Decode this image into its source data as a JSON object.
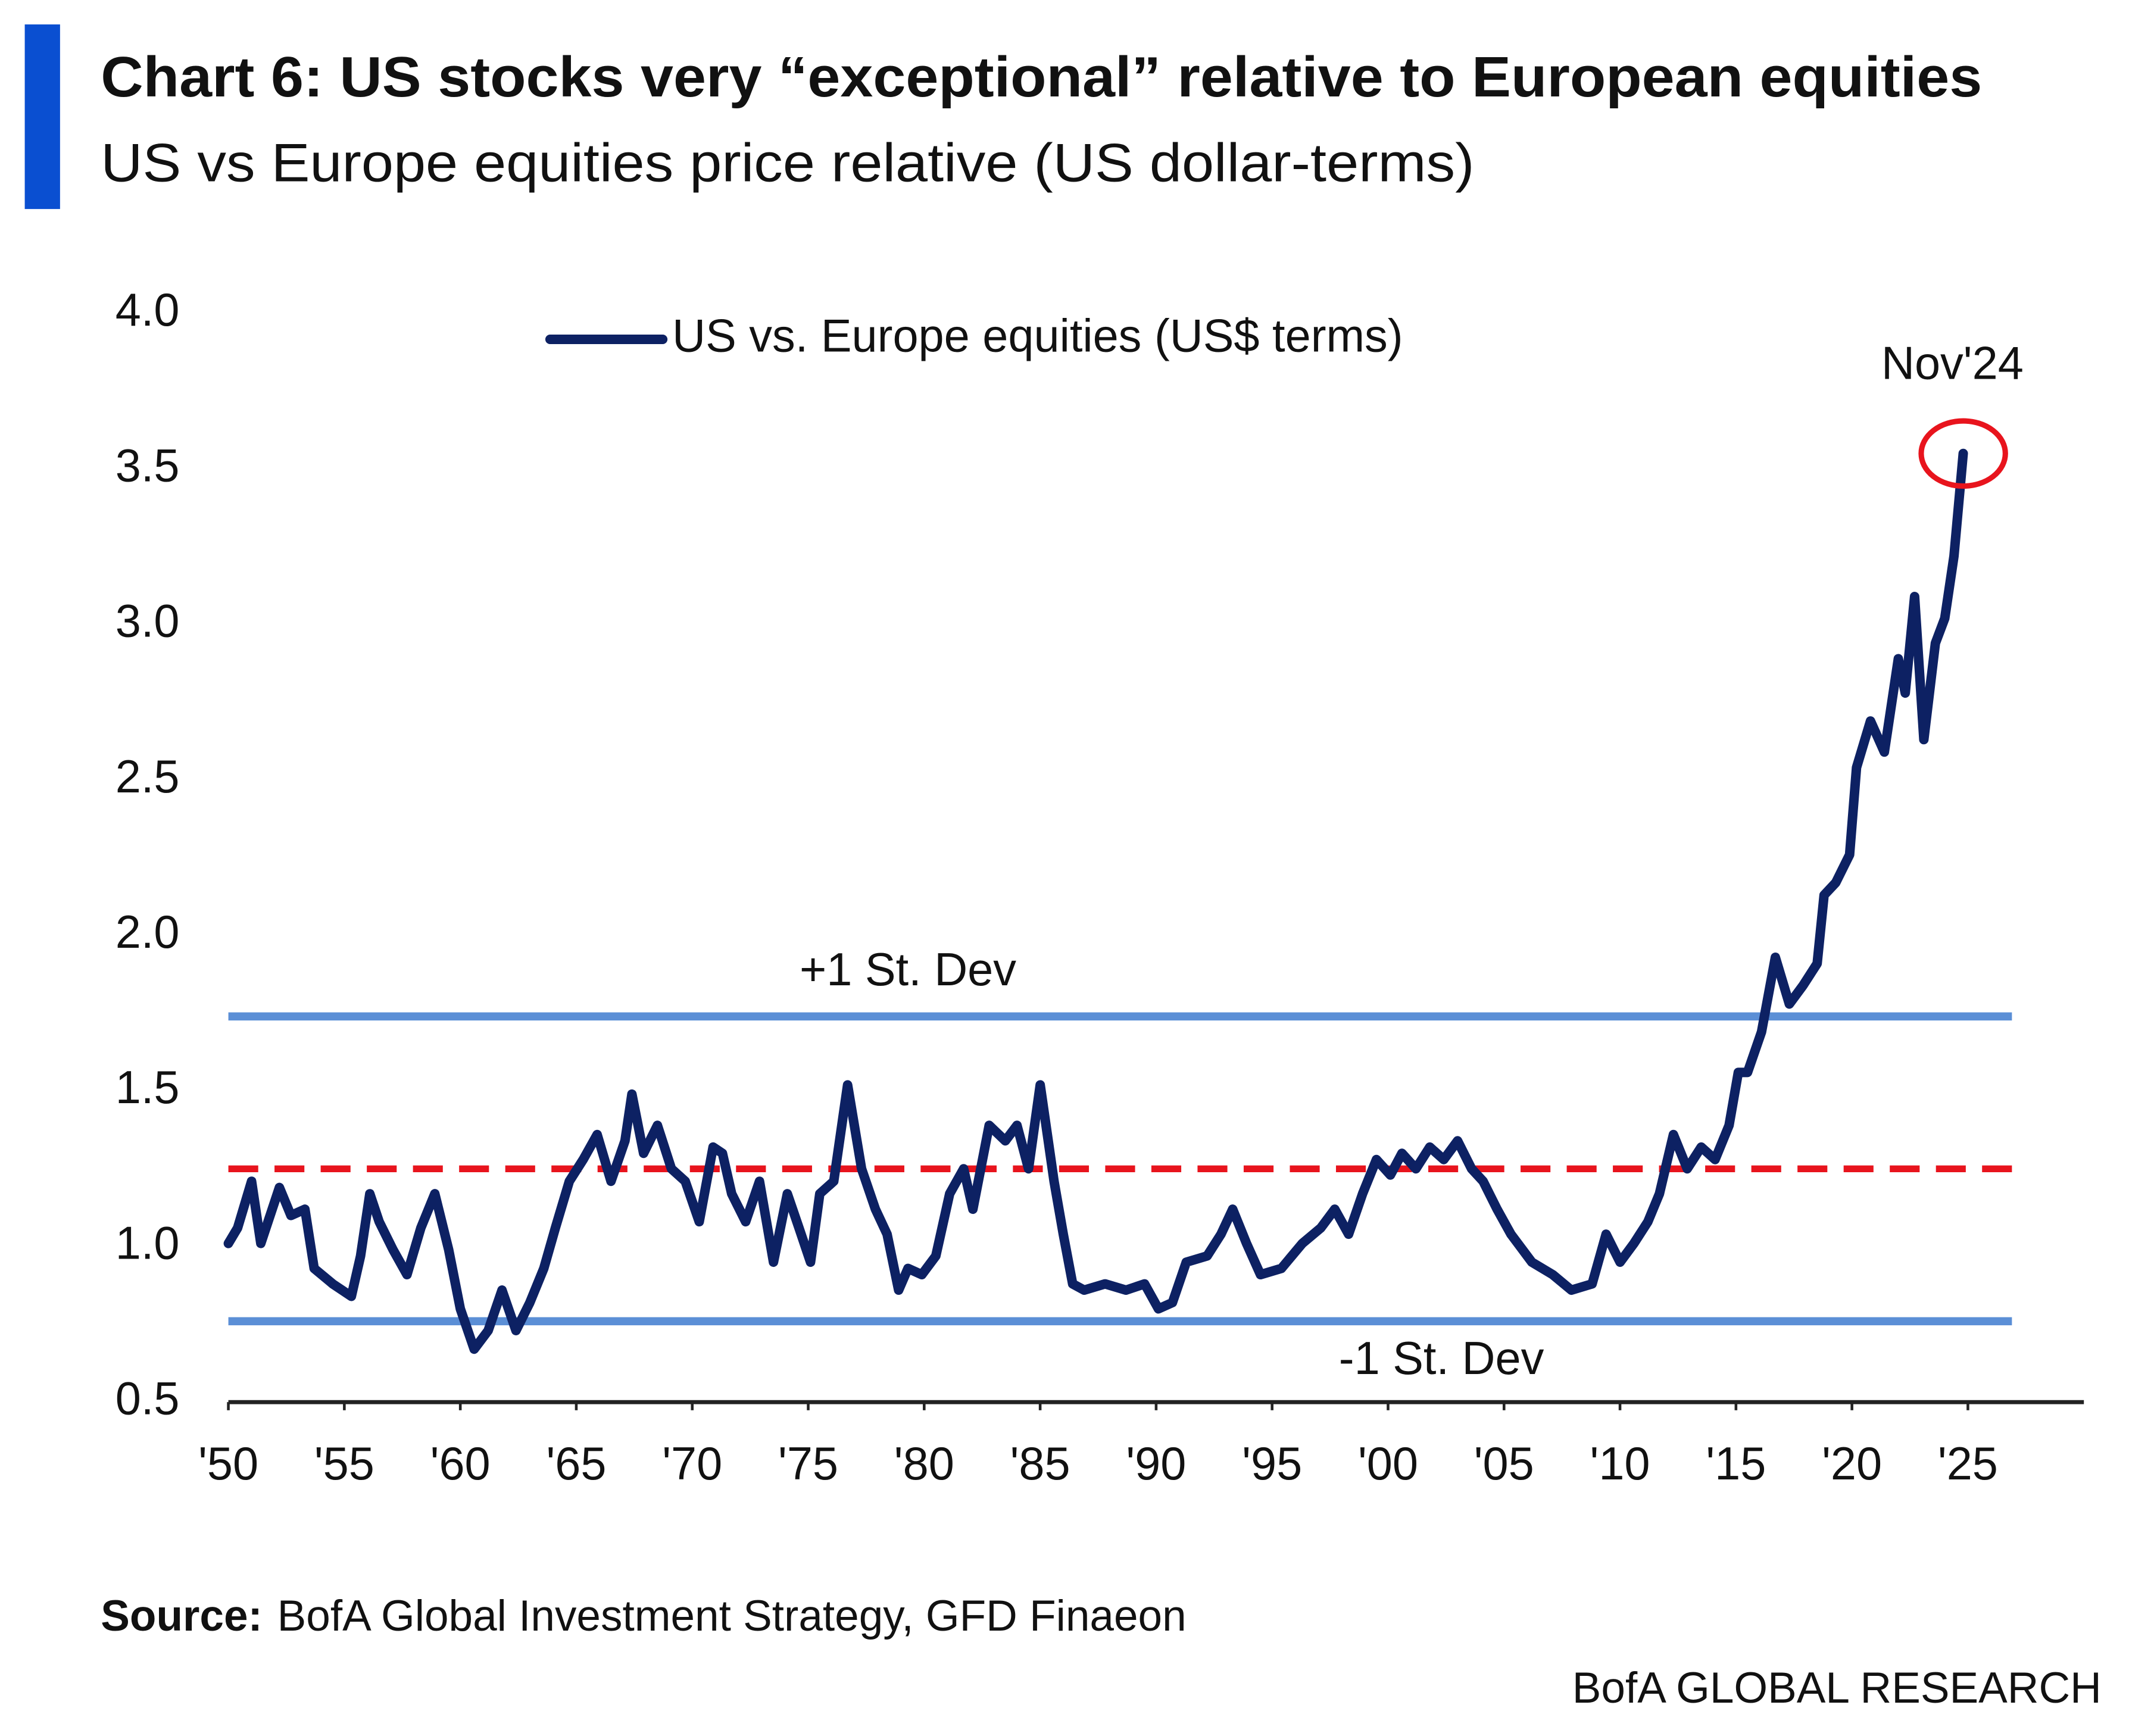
{
  "chart_data": {
    "type": "line",
    "title": "Chart 6: US stocks very “exceptional” relative to European equities",
    "subtitle": "US vs Europe equities price relative (US dollar-terms)",
    "x": [
      1950.0,
      1950.4,
      1951.0,
      1951.4,
      1952.2,
      1952.7,
      1953.3,
      1953.7,
      1954.5,
      1955.3,
      1955.7,
      1956.1,
      1956.5,
      1957.1,
      1957.7,
      1958.3,
      1958.9,
      1959.5,
      1960.0,
      1960.6,
      1961.2,
      1961.8,
      1962.4,
      1963.0,
      1963.6,
      1964.1,
      1964.7,
      1965.3,
      1965.9,
      1966.5,
      1967.1,
      1967.4,
      1967.9,
      1968.5,
      1969.1,
      1969.7,
      1970.3,
      1970.9,
      1971.3,
      1971.7,
      1972.3,
      1972.9,
      1973.5,
      1974.1,
      1974.6,
      1975.1,
      1975.5,
      1976.1,
      1976.7,
      1977.3,
      1977.9,
      1978.4,
      1978.9,
      1979.3,
      1979.9,
      1980.5,
      1981.1,
      1981.7,
      1982.1,
      1982.8,
      1983.5,
      1984.0,
      1984.5,
      1985.0,
      1985.6,
      1986.0,
      1986.4,
      1986.9,
      1987.8,
      1988.7,
      1989.5,
      1990.1,
      1990.7,
      1991.3,
      1992.2,
      1992.8,
      1993.3,
      1993.9,
      1994.5,
      1995.4,
      1996.3,
      1997.1,
      1997.7,
      1998.3,
      1998.9,
      1999.5,
      2000.1,
      2000.6,
      2001.2,
      2001.8,
      2002.4,
      2003.0,
      2003.6,
      2004.1,
      2004.7,
      2005.3,
      2006.2,
      2007.1,
      2007.9,
      2008.8,
      2009.4,
      2010.0,
      2010.6,
      2011.2,
      2011.7,
      2012.3,
      2012.9,
      2013.5,
      2014.1,
      2014.7,
      2015.1,
      2015.5,
      2016.1,
      2016.7,
      2017.3,
      2017.9,
      2018.5,
      2018.8,
      2019.3,
      2019.9,
      2020.2,
      2020.8,
      2021.4,
      2022.0,
      2022.3,
      2022.7,
      2023.1,
      2023.6,
      2024.0,
      2024.4,
      2024.8
    ],
    "series": [
      {
        "name": "US vs. Europe equities (US$ terms)",
        "color": "#0d2163",
        "values": [
          1.01,
          1.06,
          1.21,
          1.01,
          1.19,
          1.1,
          1.12,
          0.93,
          0.88,
          0.84,
          0.97,
          1.17,
          1.08,
          0.99,
          0.91,
          1.06,
          1.17,
          0.99,
          0.8,
          0.67,
          0.73,
          0.86,
          0.73,
          0.82,
          0.93,
          1.06,
          1.21,
          1.28,
          1.36,
          1.21,
          1.34,
          1.49,
          1.3,
          1.39,
          1.25,
          1.21,
          1.08,
          1.32,
          1.3,
          1.17,
          1.08,
          1.21,
          0.95,
          1.17,
          1.06,
          0.95,
          1.17,
          1.21,
          1.52,
          1.25,
          1.12,
          1.04,
          0.86,
          0.93,
          0.91,
          0.97,
          1.17,
          1.25,
          1.12,
          1.39,
          1.34,
          1.39,
          1.25,
          1.52,
          1.21,
          1.04,
          0.88,
          0.86,
          0.88,
          0.86,
          0.88,
          0.8,
          0.82,
          0.95,
          0.97,
          1.04,
          1.12,
          1.01,
          0.91,
          0.93,
          1.01,
          1.06,
          1.12,
          1.04,
          1.17,
          1.28,
          1.23,
          1.3,
          1.25,
          1.32,
          1.28,
          1.34,
          1.25,
          1.21,
          1.12,
          1.04,
          0.95,
          0.91,
          0.86,
          0.88,
          1.04,
          0.95,
          1.01,
          1.08,
          1.17,
          1.36,
          1.25,
          1.32,
          1.28,
          1.39,
          1.56,
          1.56,
          1.69,
          1.93,
          1.78,
          1.84,
          1.91,
          2.13,
          2.17,
          2.26,
          2.54,
          2.69,
          2.59,
          2.89,
          2.78,
          3.09,
          2.63,
          2.94,
          3.02,
          3.22,
          3.55
        ]
      }
    ],
    "xlim": [
      1950,
      2030
    ],
    "xticks": [
      {
        "value": 1950,
        "label": "'50"
      },
      {
        "value": 1955,
        "label": "'55"
      },
      {
        "value": 1960,
        "label": "'60"
      },
      {
        "value": 1965,
        "label": "'65"
      },
      {
        "value": 1970,
        "label": "'70"
      },
      {
        "value": 1975,
        "label": "'75"
      },
      {
        "value": 1980,
        "label": "'80"
      },
      {
        "value": 1985,
        "label": "'85"
      },
      {
        "value": 1990,
        "label": "'90"
      },
      {
        "value": 1995,
        "label": "'95"
      },
      {
        "value": 2000,
        "label": "'00"
      },
      {
        "value": 2005,
        "label": "'05"
      },
      {
        "value": 2010,
        "label": "'10"
      },
      {
        "value": 2015,
        "label": "'15"
      },
      {
        "value": 2020,
        "label": "'20"
      },
      {
        "value": 2025,
        "label": "'25"
      }
    ],
    "ylim": [
      0.5,
      4.0
    ],
    "yticks": [
      {
        "value": 4,
        "label": "4.0"
      },
      3.5,
      {
        "value": 3,
        "label": "3.0"
      },
      2.5,
      {
        "value": 2,
        "label": "2.0"
      },
      1.5,
      {
        "value": 1,
        "label": "1.0"
      },
      0.5
    ],
    "grid": false,
    "legend": "top",
    "reference_lines": [
      {
        "value": 1.74,
        "label": "+1 St. Dev",
        "color": "#5b8fd6",
        "style": "solid"
      },
      {
        "value": 1.25,
        "color": "#e8141d",
        "style": "dashed"
      },
      {
        "value": 0.76,
        "label": "-1 St. Dev",
        "color": "#5b8fd6",
        "style": "solid"
      }
    ],
    "annotation": {
      "text": "Nov'24",
      "color": "#e8141d"
    }
  },
  "footer": {
    "source_label": "Source:",
    "source": "BofA Global Investment Strategy, GFD Finaeon",
    "brand": "BofA GLOBAL RESEARCH"
  }
}
